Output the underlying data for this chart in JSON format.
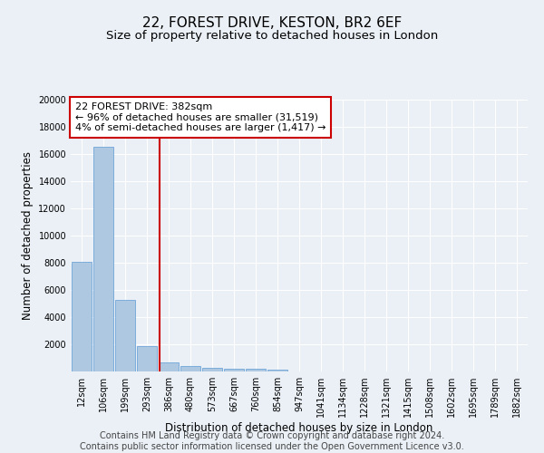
{
  "title": "22, FOREST DRIVE, KESTON, BR2 6EF",
  "subtitle": "Size of property relative to detached houses in London",
  "xlabel": "Distribution of detached houses by size in London",
  "ylabel": "Number of detached properties",
  "categories": [
    "12sqm",
    "106sqm",
    "199sqm",
    "293sqm",
    "386sqm",
    "480sqm",
    "573sqm",
    "667sqm",
    "760sqm",
    "854sqm",
    "947sqm",
    "1041sqm",
    "1134sqm",
    "1228sqm",
    "1321sqm",
    "1415sqm",
    "1508sqm",
    "1602sqm",
    "1695sqm",
    "1789sqm",
    "1882sqm"
  ],
  "values": [
    8100,
    16500,
    5300,
    1850,
    700,
    380,
    290,
    230,
    220,
    160,
    0,
    0,
    0,
    0,
    0,
    0,
    0,
    0,
    0,
    0,
    0
  ],
  "bar_color": "#adc8e0",
  "bar_edge_color": "#5b9bd5",
  "property_line_label": "22 FOREST DRIVE: 382sqm",
  "annotation_line1": "← 96% of detached houses are smaller (31,519)",
  "annotation_line2": "4% of semi-detached houses are larger (1,417) →",
  "annotation_box_color": "#ffffff",
  "annotation_box_edge_color": "#cc0000",
  "vline_color": "#cc0000",
  "vline_x_index": 3.58,
  "ylim": [
    0,
    20000
  ],
  "yticks": [
    0,
    2000,
    4000,
    6000,
    8000,
    10000,
    12000,
    14000,
    16000,
    18000,
    20000
  ],
  "footer_line1": "Contains HM Land Registry data © Crown copyright and database right 2024.",
  "footer_line2": "Contains public sector information licensed under the Open Government Licence v3.0.",
  "bg_color": "#eaf0f6",
  "plot_bg_color": "#eaf0f6",
  "title_fontsize": 11,
  "subtitle_fontsize": 9.5,
  "axis_label_fontsize": 8.5,
  "tick_fontsize": 7,
  "annotation_fontsize": 8,
  "footer_fontsize": 7
}
